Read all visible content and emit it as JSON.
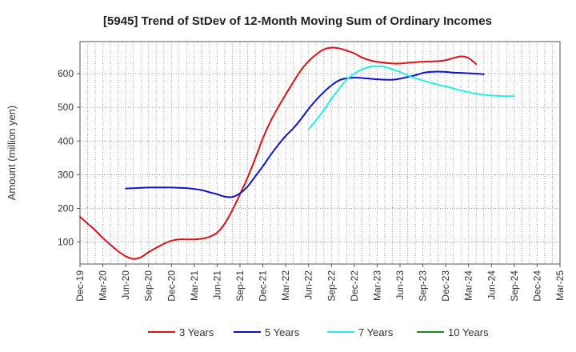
{
  "chart_data": {
    "type": "line",
    "title": "[5945]  Trend of StDev of 12-Month Moving Sum of Ordinary Incomes",
    "xlabel": "",
    "ylabel": "Amount (million yen)",
    "ylim": [
      35,
      695
    ],
    "yticks": [
      100,
      200,
      300,
      400,
      500,
      600
    ],
    "grid": true,
    "legend_position": "bottom",
    "x_tick_labels": [
      "Dec-19",
      "Mar-20",
      "Jun-20",
      "Sep-20",
      "Dec-20",
      "Mar-21",
      "Jun-21",
      "Sep-21",
      "Dec-21",
      "Mar-22",
      "Jun-22",
      "Sep-22",
      "Dec-22",
      "Mar-23",
      "Jun-23",
      "Sep-23",
      "Dec-23",
      "Mar-24",
      "Jun-24",
      "Sep-24",
      "Dec-24",
      "Mar-25"
    ],
    "series": [
      {
        "name": "3 Years",
        "color": "#dd1111",
        "start_index": 0,
        "values": [
          175,
          155,
          135,
          112,
          92,
          73,
          58,
          50,
          55,
          70,
          83,
          95,
          104,
          108,
          108,
          108,
          110,
          116,
          128,
          155,
          195,
          242,
          292,
          348,
          408,
          458,
          500,
          538,
          575,
          610,
          637,
          657,
          672,
          677,
          675,
          668,
          660,
          648,
          640,
          635,
          632,
          630,
          630,
          632,
          634,
          635,
          636,
          637,
          640,
          646,
          651,
          646,
          628
        ]
      },
      {
        "name": "5 Years",
        "color": "#0a14c8",
        "start_index": 6,
        "values": [
          259,
          260,
          261,
          262,
          262,
          262,
          262,
          261,
          260,
          258,
          254,
          248,
          242,
          235,
          234,
          245,
          265,
          295,
          325,
          358,
          388,
          415,
          438,
          465,
          495,
          522,
          545,
          565,
          580,
          586,
          588,
          587,
          585,
          583,
          582,
          582,
          585,
          590,
          595,
          602,
          605,
          606,
          605,
          603,
          602,
          601,
          600,
          598
        ]
      },
      {
        "name": "7 Years",
        "color": "#22eeee",
        "start_index": 30,
        "values": [
          435,
          462,
          492,
          525,
          555,
          582,
          600,
          612,
          620,
          622,
          620,
          613,
          605,
          595,
          586,
          580,
          573,
          567,
          562,
          556,
          550,
          545,
          540,
          537,
          535,
          534,
          533,
          533
        ]
      },
      {
        "name": "10 Years",
        "color": "#1a8a1a",
        "start_index": 0,
        "values": []
      }
    ]
  }
}
